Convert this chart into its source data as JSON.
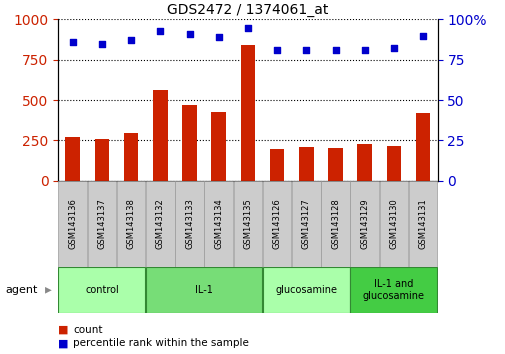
{
  "title": "GDS2472 / 1374061_at",
  "samples": [
    "GSM143136",
    "GSM143137",
    "GSM143138",
    "GSM143132",
    "GSM143133",
    "GSM143134",
    "GSM143135",
    "GSM143126",
    "GSM143127",
    "GSM143128",
    "GSM143129",
    "GSM143130",
    "GSM143131"
  ],
  "counts": [
    270,
    255,
    295,
    565,
    470,
    425,
    840,
    195,
    210,
    205,
    225,
    215,
    420
  ],
  "percentiles": [
    86,
    85,
    87,
    93,
    91,
    89,
    95,
    81,
    81,
    81,
    81,
    82,
    90
  ],
  "groups": [
    {
      "label": "control",
      "start": 0,
      "end": 3,
      "color": "#AAFFAA"
    },
    {
      "label": "IL-1",
      "start": 3,
      "end": 7,
      "color": "#77DD77"
    },
    {
      "label": "glucosamine",
      "start": 7,
      "end": 10,
      "color": "#AAFFAA"
    },
    {
      "label": "IL-1 and\nglucosamine",
      "start": 10,
      "end": 13,
      "color": "#44CC44"
    }
  ],
  "bar_color": "#CC2200",
  "dot_color": "#0000CC",
  "left_yticks": [
    0,
    250,
    500,
    750,
    1000
  ],
  "right_yticks": [
    0,
    25,
    50,
    75,
    100
  ],
  "agent_label": "agent",
  "legend_count_label": "count",
  "legend_percentile_label": "percentile rank within the sample",
  "sample_box_color": "#CCCCCC",
  "sample_box_edge": "#999999"
}
